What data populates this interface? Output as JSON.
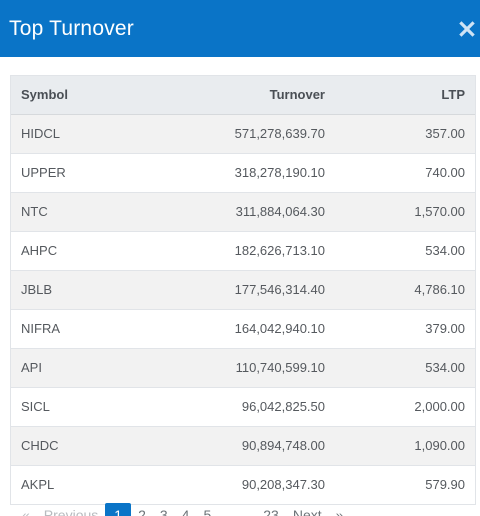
{
  "modal": {
    "title": "Top Turnover",
    "close_icon": "close-icon",
    "accent": "#0a74c7"
  },
  "table": {
    "headers": {
      "symbol": "Symbol",
      "turnover": "Turnover",
      "ltp": "LTP"
    },
    "rows": [
      {
        "symbol": "HIDCL",
        "turnover": "571,278,639.70",
        "ltp": "357.00"
      },
      {
        "symbol": "UPPER",
        "turnover": "318,278,190.10",
        "ltp": "740.00"
      },
      {
        "symbol": "NTC",
        "turnover": "311,884,064.30",
        "ltp": "1,570.00"
      },
      {
        "symbol": "AHPC",
        "turnover": "182,626,713.10",
        "ltp": "534.00"
      },
      {
        "symbol": "JBLB",
        "turnover": "177,546,314.40",
        "ltp": "4,786.10"
      },
      {
        "symbol": "NIFRA",
        "turnover": "164,042,940.10",
        "ltp": "379.00"
      },
      {
        "symbol": "API",
        "turnover": "110,740,599.10",
        "ltp": "534.00"
      },
      {
        "symbol": "SICL",
        "turnover": "96,042,825.50",
        "ltp": "2,000.00"
      },
      {
        "symbol": "CHDC",
        "turnover": "90,894,748.00",
        "ltp": "1,090.00"
      },
      {
        "symbol": "AKPL",
        "turnover": "90,208,347.30",
        "ltp": "579.90"
      }
    ]
  },
  "pagination": {
    "first": "«",
    "previous": "Previous",
    "pages": [
      "1",
      "2",
      "3",
      "4",
      "5"
    ],
    "ellipsis": "…",
    "last_page": "23",
    "next": "Next",
    "last": "»",
    "current": "1"
  }
}
